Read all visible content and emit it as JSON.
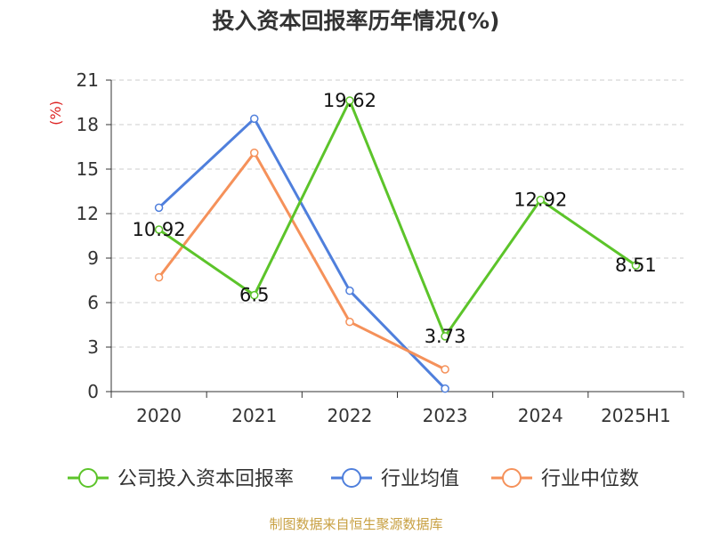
{
  "chart_data": {
    "type": "line",
    "title": "投入资本回报率历年情况(%)",
    "ylabel": "(%)",
    "categories": [
      "2020",
      "2021",
      "2022",
      "2023",
      "2024",
      "2025H1"
    ],
    "ylim": [
      0,
      21
    ],
    "yticks": [
      0,
      3,
      6,
      9,
      12,
      15,
      18,
      21
    ],
    "grid": true,
    "legend_position": "bottom",
    "series": [
      {
        "name": "公司投入资本回报率",
        "color": "#5cc42a",
        "values": [
          10.92,
          6.5,
          19.62,
          3.73,
          12.92,
          8.51
        ],
        "labels": [
          "10.92",
          "6.5",
          "19.62",
          "3.73",
          "12.92",
          "8.51"
        ]
      },
      {
        "name": "行业均值",
        "color": "#4f7fdc",
        "values": [
          12.4,
          18.4,
          6.8,
          0.2,
          null,
          null
        ]
      },
      {
        "name": "行业中位数",
        "color": "#f5915a",
        "values": [
          7.7,
          16.1,
          4.7,
          1.5,
          null,
          null
        ]
      }
    ]
  },
  "footer": {
    "source": "制图数据来自恒生聚源数据库"
  }
}
